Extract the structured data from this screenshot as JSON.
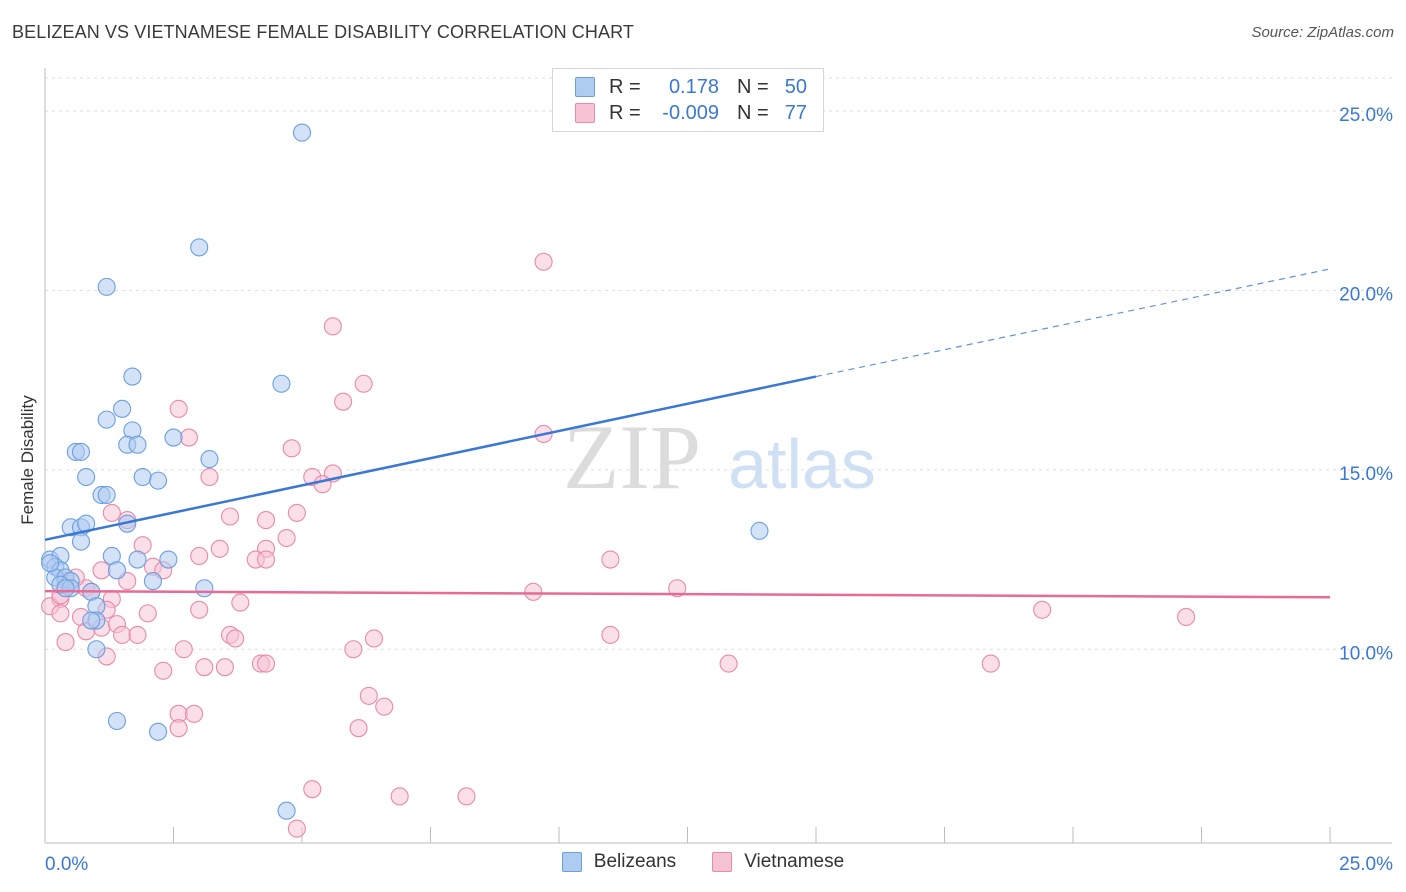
{
  "title": "BELIZEAN VS VIETNAMESE FEMALE DISABILITY CORRELATION CHART",
  "source": "Source: ZipAtlas.com",
  "watermark": {
    "zip": "ZIP",
    "atlas": "atlas"
  },
  "legend": {
    "r_label": "R =",
    "n_label": "N =",
    "rows": [
      {
        "name": "Belizeans",
        "r": "0.178",
        "n": "50",
        "fill": "#aecbf0",
        "stroke": "#6a9fe0"
      },
      {
        "name": "Vietnamese",
        "r": "-0.009",
        "n": "77",
        "fill": "#f6c3d5",
        "stroke": "#e88aa9"
      }
    ]
  },
  "chart_data": {
    "type": "scatter",
    "title": "BELIZEAN VS VIETNAMESE FEMALE DISABILITY CORRELATION CHART",
    "xlabel": "",
    "ylabel": "Female Disability",
    "xlim": [
      0,
      25
    ],
    "ylim": [
      4.6,
      26.2
    ],
    "x_tick_labels": [
      "0.0%",
      "25.0%"
    ],
    "y_ticks": [
      10,
      15,
      20,
      25
    ],
    "y_tick_labels": [
      "10.0%",
      "15.0%",
      "20.0%",
      "25.0%"
    ],
    "grid": true,
    "legend_position": "bottom",
    "series": [
      {
        "name": "Belizeans",
        "color": "#3a78d4",
        "marker_fill": "#aecbf0",
        "marker_stroke": "#6a9fe0",
        "trend": {
          "x0": 0,
          "y0": 13.05,
          "x_solid_end": 15.0,
          "y_solid_end": 17.6,
          "x1": 25.0,
          "y1": 20.6
        },
        "points": [
          [
            5.0,
            24.4
          ],
          [
            3.0,
            21.2
          ],
          [
            1.2,
            20.1
          ],
          [
            1.7,
            17.6
          ],
          [
            4.6,
            17.4
          ],
          [
            1.5,
            16.7
          ],
          [
            1.2,
            16.4
          ],
          [
            1.7,
            16.1
          ],
          [
            2.5,
            15.9
          ],
          [
            1.6,
            15.7
          ],
          [
            1.8,
            15.7
          ],
          [
            0.6,
            15.5
          ],
          [
            0.7,
            15.5
          ],
          [
            3.2,
            15.3
          ],
          [
            0.8,
            14.8
          ],
          [
            1.9,
            14.8
          ],
          [
            2.2,
            14.7
          ],
          [
            1.1,
            14.3
          ],
          [
            1.2,
            14.3
          ],
          [
            0.5,
            13.4
          ],
          [
            0.7,
            13.4
          ],
          [
            0.8,
            13.5
          ],
          [
            1.6,
            13.5
          ],
          [
            0.7,
            13.0
          ],
          [
            0.1,
            12.5
          ],
          [
            0.3,
            12.6
          ],
          [
            1.3,
            12.6
          ],
          [
            1.8,
            12.5
          ],
          [
            2.4,
            12.5
          ],
          [
            0.2,
            12.3
          ],
          [
            0.3,
            12.2
          ],
          [
            0.2,
            12.0
          ],
          [
            0.4,
            12.0
          ],
          [
            0.5,
            11.9
          ],
          [
            0.3,
            11.8
          ],
          [
            1.4,
            12.2
          ],
          [
            2.1,
            11.9
          ],
          [
            0.5,
            11.7
          ],
          [
            3.1,
            11.7
          ],
          [
            0.9,
            11.6
          ],
          [
            0.4,
            11.7
          ],
          [
            1.0,
            11.2
          ],
          [
            1.0,
            10.8
          ],
          [
            0.9,
            10.8
          ],
          [
            1.0,
            10.0
          ],
          [
            13.9,
            13.3
          ],
          [
            1.4,
            8.0
          ],
          [
            2.2,
            7.7
          ],
          [
            4.7,
            5.5
          ],
          [
            0.1,
            12.4
          ]
        ]
      },
      {
        "name": "Vietnamese",
        "color": "#e86a95",
        "marker_fill": "#f6c3d5",
        "marker_stroke": "#e88aa9",
        "trend": {
          "x0": 0,
          "y0": 11.62,
          "x1": 25.0,
          "y1": 11.45
        },
        "points": [
          [
            9.7,
            20.8
          ],
          [
            5.6,
            19.0
          ],
          [
            6.2,
            17.4
          ],
          [
            5.8,
            16.9
          ],
          [
            2.6,
            16.7
          ],
          [
            9.7,
            16.0
          ],
          [
            2.8,
            15.9
          ],
          [
            4.8,
            15.6
          ],
          [
            5.2,
            14.8
          ],
          [
            5.6,
            14.9
          ],
          [
            3.2,
            14.8
          ],
          [
            5.4,
            14.6
          ],
          [
            1.3,
            13.8
          ],
          [
            1.6,
            13.6
          ],
          [
            3.6,
            13.7
          ],
          [
            4.3,
            13.6
          ],
          [
            4.9,
            13.8
          ],
          [
            4.7,
            13.1
          ],
          [
            1.9,
            12.9
          ],
          [
            3.4,
            12.8
          ],
          [
            4.3,
            12.8
          ],
          [
            3.0,
            12.6
          ],
          [
            4.1,
            12.5
          ],
          [
            4.3,
            12.5
          ],
          [
            11.0,
            12.5
          ],
          [
            1.1,
            12.2
          ],
          [
            2.1,
            12.3
          ],
          [
            2.3,
            12.2
          ],
          [
            0.4,
            11.9
          ],
          [
            1.6,
            11.9
          ],
          [
            0.8,
            11.7
          ],
          [
            0.9,
            11.6
          ],
          [
            9.5,
            11.6
          ],
          [
            12.3,
            11.7
          ],
          [
            0.3,
            11.4
          ],
          [
            1.3,
            11.4
          ],
          [
            3.8,
            11.3
          ],
          [
            0.1,
            11.2
          ],
          [
            1.2,
            11.1
          ],
          [
            0.3,
            11.0
          ],
          [
            2.0,
            11.0
          ],
          [
            3.0,
            11.1
          ],
          [
            19.4,
            11.1
          ],
          [
            22.2,
            10.9
          ],
          [
            0.7,
            10.9
          ],
          [
            1.1,
            10.6
          ],
          [
            1.4,
            10.7
          ],
          [
            0.8,
            10.5
          ],
          [
            1.5,
            10.4
          ],
          [
            1.8,
            10.4
          ],
          [
            3.6,
            10.4
          ],
          [
            3.7,
            10.3
          ],
          [
            6.4,
            10.3
          ],
          [
            11.0,
            10.4
          ],
          [
            0.4,
            10.2
          ],
          [
            2.7,
            10.0
          ],
          [
            6.0,
            10.0
          ],
          [
            1.2,
            9.8
          ],
          [
            13.3,
            9.6
          ],
          [
            18.4,
            9.6
          ],
          [
            3.5,
            9.5
          ],
          [
            4.2,
            9.6
          ],
          [
            4.3,
            9.6
          ],
          [
            3.1,
            9.5
          ],
          [
            2.3,
            9.4
          ],
          [
            2.6,
            8.2
          ],
          [
            2.9,
            8.2
          ],
          [
            2.6,
            7.8
          ],
          [
            6.3,
            8.7
          ],
          [
            6.6,
            8.4
          ],
          [
            6.1,
            7.8
          ],
          [
            5.2,
            6.1
          ],
          [
            6.9,
            5.9
          ],
          [
            8.2,
            5.9
          ],
          [
            4.9,
            5.0
          ],
          [
            0.3,
            11.5
          ],
          [
            0.6,
            12.0
          ]
        ]
      }
    ]
  }
}
